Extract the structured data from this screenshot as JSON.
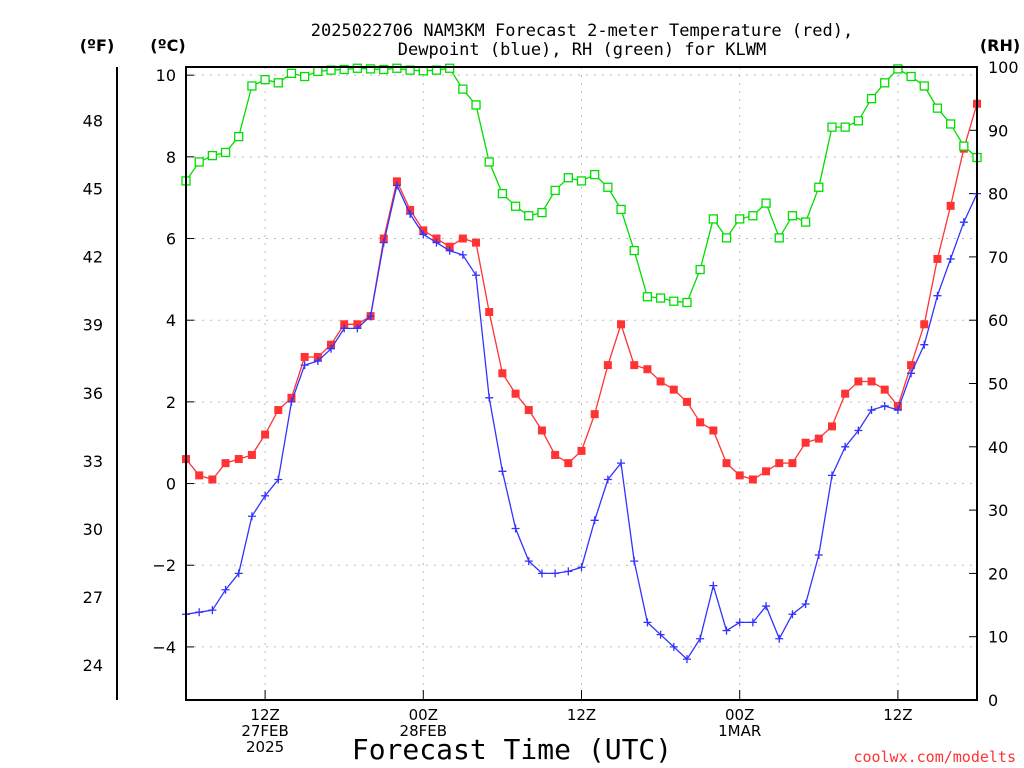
{
  "chart_data": {
    "type": "line",
    "title": [
      "2025022706 NAM3KM Forecast 2-meter Temperature (red),",
      "Dewpoint (blue), RH (green) for KLWM"
    ],
    "xlabel": "Forecast Time (UTC)",
    "units": {
      "fahrenheit": "(ºF)",
      "celsius": "(ºC)",
      "rh": "(RH)"
    },
    "credit": "coolwx.com/modelts",
    "x_unit": "forecast hour",
    "xlim": [
      0,
      60
    ],
    "x_ticks": [
      {
        "x": 6,
        "lines": [
          "12Z",
          "27FEB",
          "2025"
        ]
      },
      {
        "x": 18,
        "lines": [
          "00Z",
          "28FEB"
        ]
      },
      {
        "x": 30,
        "lines": [
          "12Z"
        ]
      },
      {
        "x": 42,
        "lines": [
          "00Z",
          "1MAR"
        ]
      },
      {
        "x": 54,
        "lines": [
          "12Z"
        ]
      }
    ],
    "y_left_celsius": {
      "lim": [
        -5.3,
        10.2
      ],
      "ticks": [
        -4,
        -2,
        0,
        2,
        4,
        6,
        8,
        10
      ],
      "labels": [
        "−4",
        "−2",
        "0",
        "2",
        "4",
        "6",
        "8",
        "10"
      ]
    },
    "y_left_fahrenheit": {
      "ticks": [
        24,
        27,
        30,
        33,
        36,
        39,
        42,
        45,
        48
      ]
    },
    "y_right_rh": {
      "lim": [
        0,
        100
      ],
      "ticks": [
        0,
        10,
        20,
        30,
        40,
        50,
        60,
        70,
        80,
        90,
        100
      ]
    },
    "grid": true,
    "series": [
      {
        "name": "Temperature",
        "axis": "celsius",
        "color": "#ff3333",
        "marker": "filled-square",
        "values": [
          0.6,
          0.2,
          0.1,
          0.5,
          0.6,
          0.7,
          1.2,
          1.8,
          2.1,
          3.1,
          3.1,
          3.4,
          3.9,
          3.9,
          4.1,
          6.0,
          7.4,
          6.7,
          6.2,
          6.0,
          5.8,
          6.0,
          5.9,
          4.2,
          2.7,
          2.2,
          1.8,
          1.3,
          0.7,
          0.5,
          0.8,
          1.7,
          2.9,
          3.9,
          2.9,
          2.8,
          2.5,
          2.3,
          2.0,
          1.5,
          1.3,
          0.5,
          0.2,
          0.1,
          0.3,
          0.5,
          0.5,
          1.0,
          1.1,
          1.4,
          2.2,
          2.5,
          2.5,
          2.3,
          1.9,
          2.9,
          3.9,
          5.5,
          6.8,
          8.2,
          9.3
        ]
      },
      {
        "name": "Dewpoint",
        "axis": "celsius",
        "color": "#3333ff",
        "marker": "plus",
        "values": [
          -3.2,
          -3.15,
          -3.1,
          -2.6,
          -2.2,
          -0.8,
          -0.3,
          0.1,
          2.0,
          2.9,
          3.0,
          3.3,
          3.8,
          3.8,
          4.1,
          5.9,
          7.3,
          6.6,
          6.1,
          5.9,
          5.7,
          5.6,
          5.1,
          2.1,
          0.3,
          -1.1,
          -1.9,
          -2.2,
          -2.2,
          -2.15,
          -2.05,
          -0.9,
          0.1,
          0.5,
          -1.9,
          -3.4,
          -3.7,
          -4.0,
          -4.3,
          -3.8,
          -2.5,
          -3.6,
          -3.4,
          -3.4,
          -3.0,
          -3.8,
          -3.2,
          -2.95,
          -1.75,
          0.2,
          0.9,
          1.3,
          1.8,
          1.9,
          1.8,
          2.7,
          3.4,
          4.6,
          5.5,
          6.4,
          7.1
        ]
      },
      {
        "name": "RH",
        "axis": "rh",
        "color": "#00dd00",
        "marker": "open-square",
        "values": [
          82,
          85,
          86,
          86.5,
          89,
          97,
          98,
          97.5,
          99,
          98.5,
          99.3,
          99.5,
          99.6,
          99.8,
          99.7,
          99.6,
          99.8,
          99.5,
          99.4,
          99.5,
          99.8,
          96.5,
          94,
          85,
          80,
          78,
          76.5,
          77,
          80.5,
          82.5,
          82,
          83,
          81,
          77.5,
          71,
          63.7,
          63.5,
          63,
          62.8,
          68,
          76,
          73,
          76,
          76.5,
          78.5,
          73,
          76.5,
          75.5,
          81,
          90.5,
          90.5,
          91.5,
          95,
          97.5,
          99.7,
          98.5,
          97,
          93.5,
          91,
          87.5,
          85.7
        ]
      }
    ]
  }
}
